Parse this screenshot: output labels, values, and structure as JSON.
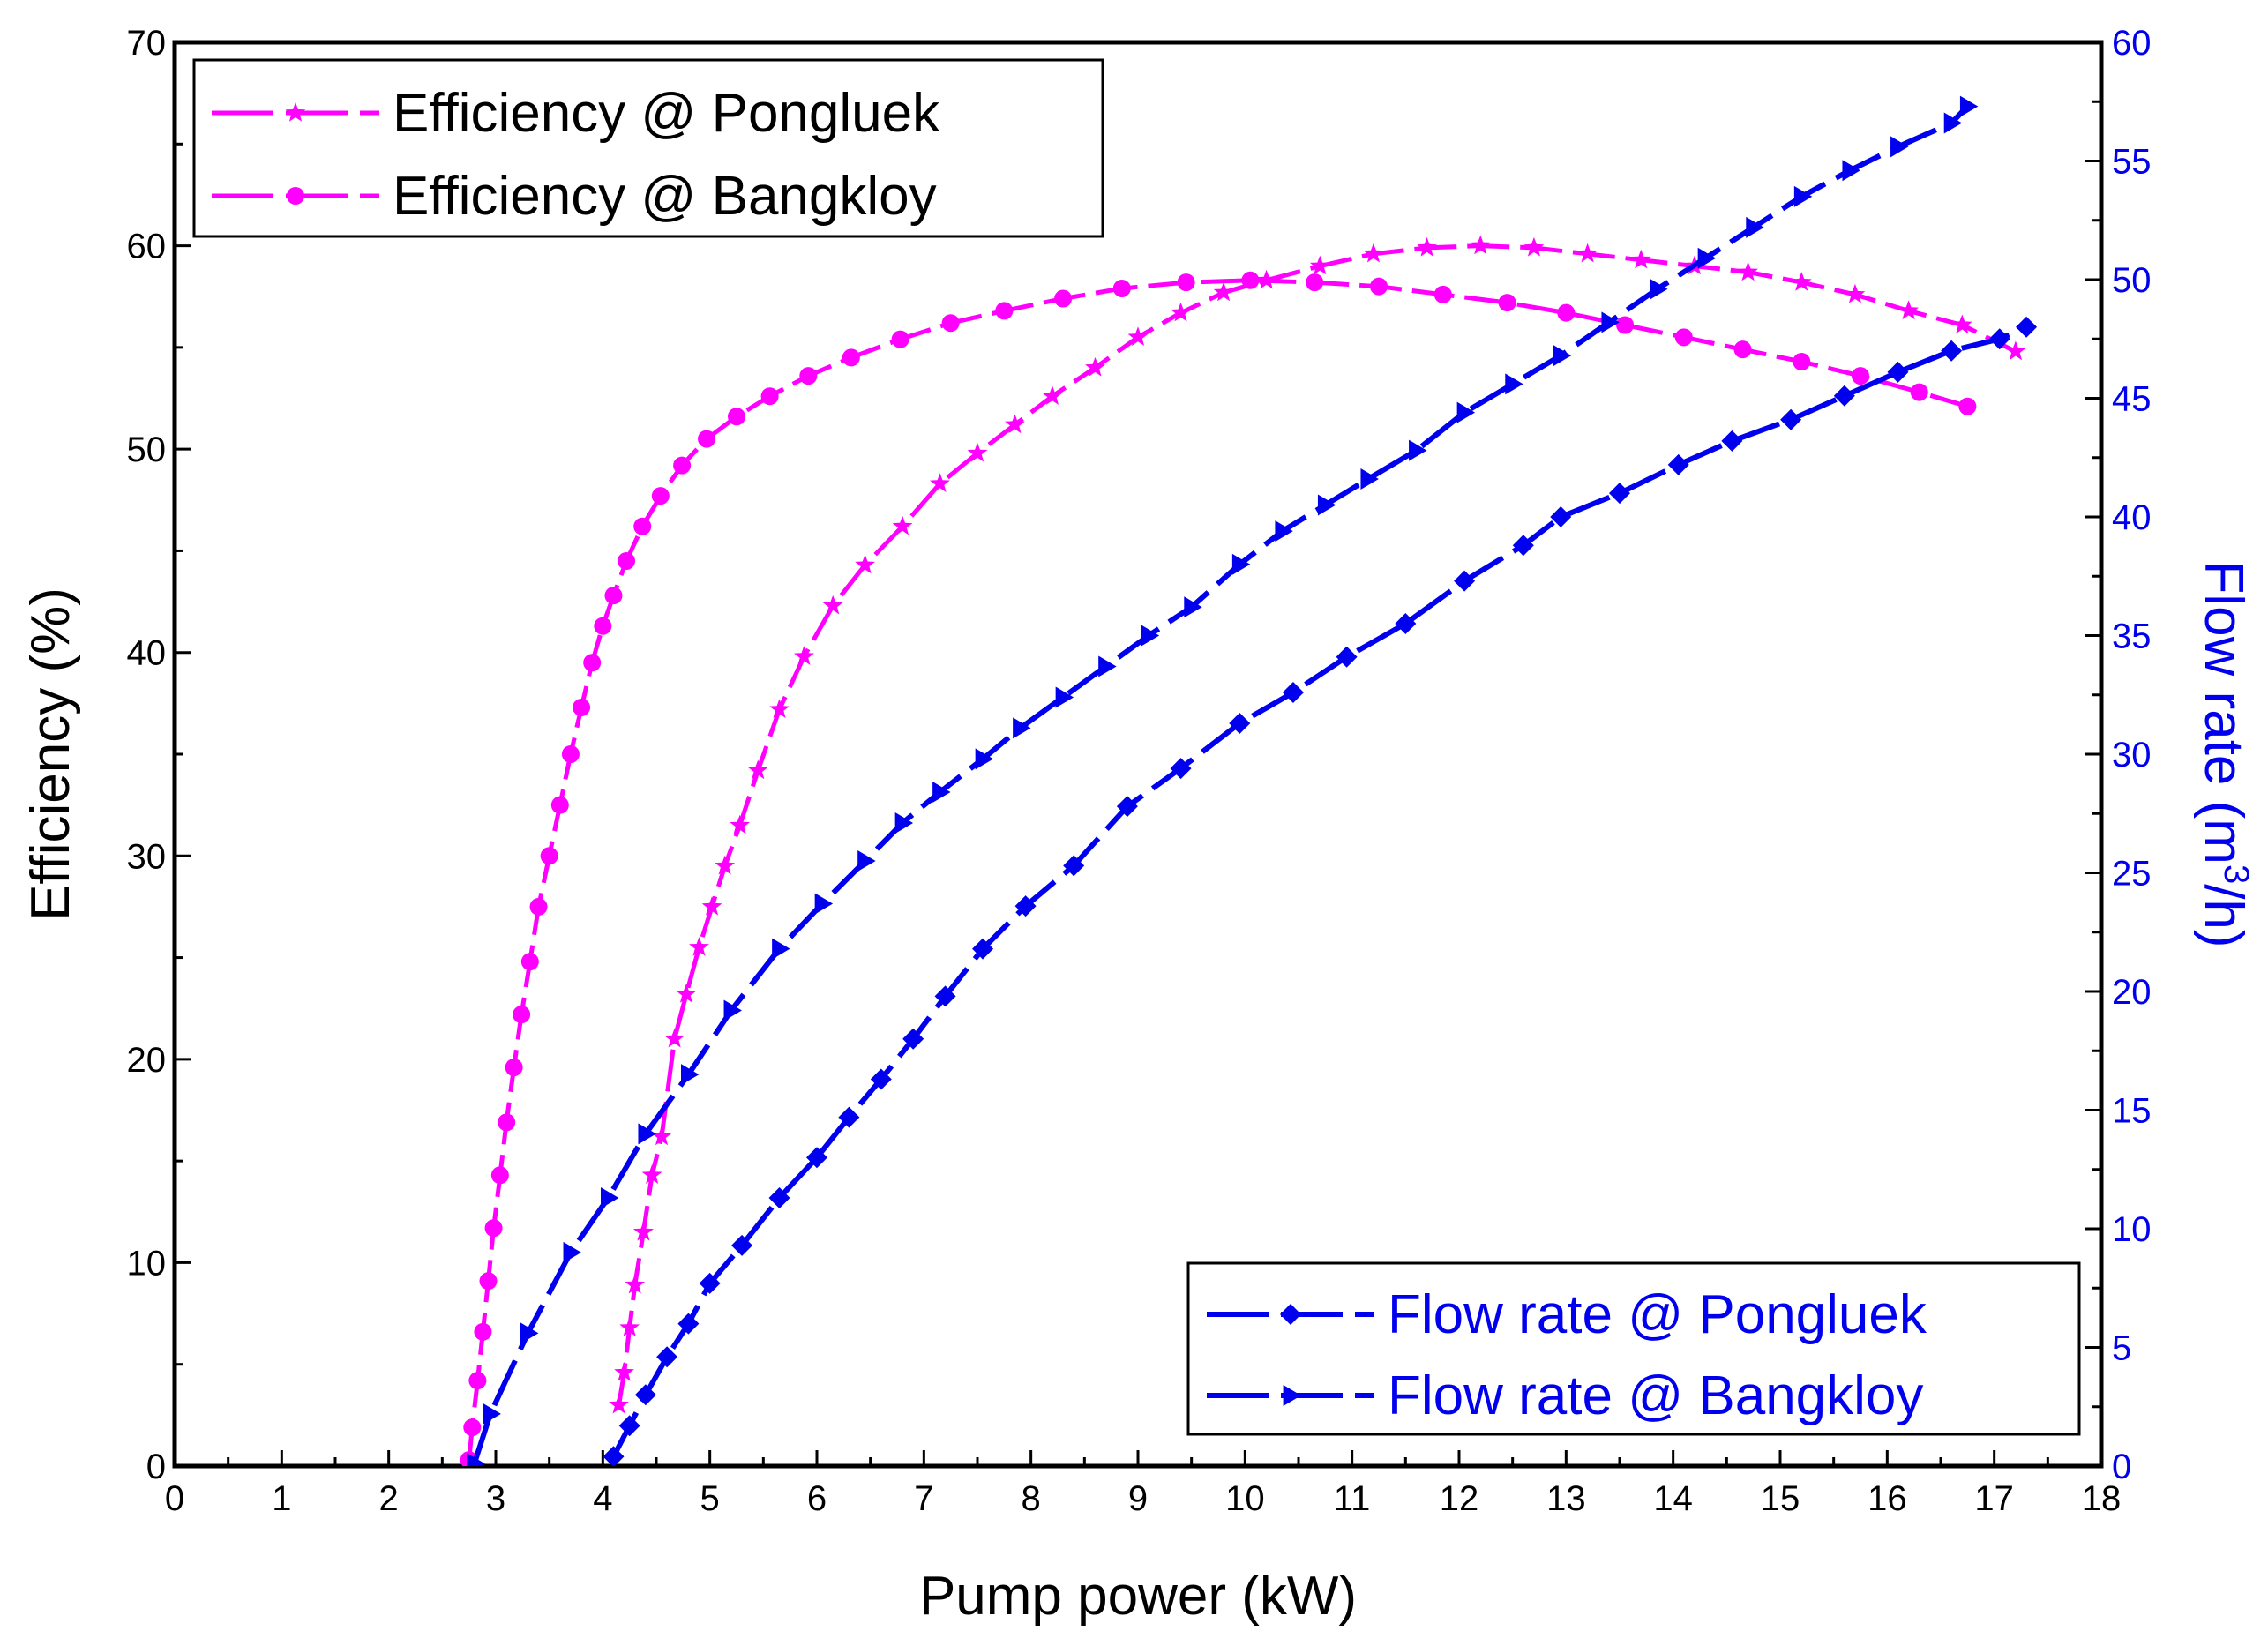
{
  "chart_data": {
    "type": "line",
    "xlabel": "Pump power (kW)",
    "ylabel": "Efficiency (%)",
    "y2label": "Flow rate (m",
    "y2label_sup": "3",
    "y2label_end": "/h)",
    "xlim": [
      0,
      18
    ],
    "ylim": [
      0,
      70
    ],
    "y2lim": [
      0,
      60
    ],
    "xticks": [
      0,
      1,
      2,
      3,
      4,
      5,
      6,
      7,
      8,
      9,
      10,
      11,
      12,
      13,
      14,
      15,
      16,
      17,
      18
    ],
    "yticks": [
      0,
      10,
      20,
      30,
      40,
      50,
      60,
      70
    ],
    "y2ticks": [
      0,
      5,
      10,
      15,
      20,
      25,
      30,
      35,
      40,
      45,
      50,
      55,
      60
    ],
    "grid": false,
    "colors": {
      "efficiency": "#ff00ff",
      "flow": "#0000ee",
      "axis": "#000000"
    },
    "legend_left_position": "top-left",
    "legend_right_position": "bottom-right",
    "series": [
      {
        "name": "Efficiency @ Pongluek",
        "axis": "left",
        "marker": "star",
        "x": [
          4.15,
          4.2,
          4.25,
          4.3,
          4.38,
          4.46,
          4.55,
          4.67,
          4.78,
          4.9,
          5.02,
          5.14,
          5.28,
          5.45,
          5.65,
          5.88,
          6.15,
          6.45,
          6.8,
          7.15,
          7.5,
          7.85,
          8.2,
          8.6,
          9.0,
          9.4,
          9.8,
          10.2,
          10.7,
          11.2,
          11.7,
          12.2,
          12.7,
          13.2,
          13.7,
          14.2,
          14.7,
          15.2,
          15.7,
          16.2,
          16.7,
          17.2
        ],
        "y": [
          3.0,
          4.6,
          6.8,
          8.9,
          11.5,
          14.3,
          16.2,
          21.0,
          23.2,
          25.5,
          27.5,
          29.5,
          31.5,
          34.2,
          37.2,
          39.8,
          42.3,
          44.3,
          46.2,
          48.3,
          49.8,
          51.2,
          52.6,
          54.0,
          55.5,
          56.7,
          57.7,
          58.3,
          59.0,
          59.6,
          59.9,
          60.0,
          59.9,
          59.6,
          59.3,
          59.0,
          58.7,
          58.2,
          57.6,
          56.8,
          56.1,
          54.8
        ]
      },
      {
        "name": "Efficiency @ Bangkloy",
        "axis": "left",
        "marker": "circle",
        "x": [
          2.75,
          2.78,
          2.83,
          2.88,
          2.93,
          2.98,
          3.04,
          3.1,
          3.17,
          3.24,
          3.32,
          3.4,
          3.5,
          3.6,
          3.7,
          3.8,
          3.9,
          4.0,
          4.1,
          4.22,
          4.37,
          4.54,
          4.74,
          4.97,
          5.25,
          5.56,
          5.92,
          6.32,
          6.78,
          7.25,
          7.75,
          8.3,
          8.85,
          9.45,
          10.05,
          10.65,
          11.25,
          11.85,
          12.45,
          13.0,
          13.55,
          14.1,
          14.65,
          15.2,
          15.75,
          16.3,
          16.75
        ],
        "y": [
          0.3,
          1.9,
          4.2,
          6.6,
          9.1,
          11.7,
          14.3,
          16.9,
          19.6,
          22.2,
          24.8,
          27.5,
          30.0,
          32.5,
          35.0,
          37.3,
          39.5,
          41.3,
          42.8,
          44.5,
          46.2,
          47.7,
          49.2,
          50.5,
          51.6,
          52.6,
          53.6,
          54.5,
          55.4,
          56.2,
          56.8,
          57.4,
          57.9,
          58.2,
          58.3,
          58.2,
          58.0,
          57.6,
          57.2,
          56.7,
          56.1,
          55.5,
          54.9,
          54.3,
          53.6,
          52.8,
          52.1
        ]
      },
      {
        "name": "Flow rate @ Pongluek",
        "axis": "right",
        "marker": "diamond",
        "x": [
          4.1,
          4.25,
          4.4,
          4.6,
          4.8,
          5.0,
          5.3,
          5.65,
          6.0,
          6.3,
          6.6,
          6.9,
          7.2,
          7.55,
          7.95,
          8.4,
          8.9,
          9.4,
          9.95,
          10.45,
          10.95,
          11.5,
          12.05,
          12.6,
          12.95,
          13.5,
          14.05,
          14.55,
          15.1,
          15.6,
          16.1,
          16.6,
          17.05,
          17.3
        ],
        "y": [
          0.4,
          1.7,
          3.0,
          4.6,
          6.0,
          7.7,
          9.3,
          11.3,
          13.0,
          14.7,
          16.3,
          18.0,
          19.8,
          21.8,
          23.6,
          25.3,
          27.8,
          29.4,
          31.3,
          32.6,
          34.1,
          35.5,
          37.3,
          38.8,
          40.0,
          41.0,
          42.2,
          43.2,
          44.1,
          45.1,
          46.1,
          47.0,
          47.5,
          48.0
        ]
      },
      {
        "name": "Flow rate @ Bangkloy",
        "axis": "right",
        "marker": "triangle-right",
        "x": [
          2.8,
          2.95,
          3.3,
          3.7,
          4.05,
          4.4,
          4.8,
          5.2,
          5.65,
          6.05,
          6.45,
          6.8,
          7.15,
          7.55,
          7.9,
          8.3,
          8.7,
          9.1,
          9.5,
          9.95,
          10.35,
          10.75,
          11.15,
          11.6,
          12.05,
          12.5,
          12.95,
          13.4,
          13.85,
          14.3,
          14.75,
          15.2,
          15.65,
          16.1,
          16.6,
          16.75
        ],
        "y": [
          0.1,
          2.2,
          5.6,
          9.0,
          11.3,
          14.0,
          16.5,
          19.2,
          21.8,
          23.7,
          25.5,
          27.1,
          28.4,
          29.8,
          31.1,
          32.4,
          33.7,
          35.0,
          36.2,
          38.0,
          39.4,
          40.5,
          41.6,
          42.8,
          44.4,
          45.6,
          46.8,
          48.2,
          49.6,
          50.9,
          52.2,
          53.5,
          54.6,
          55.6,
          56.6,
          57.3
        ]
      }
    ]
  }
}
